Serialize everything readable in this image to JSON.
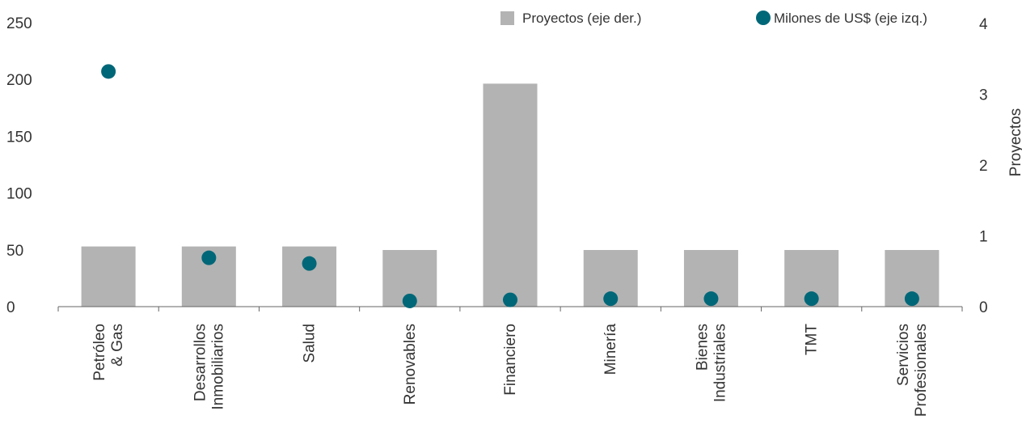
{
  "chart_data": {
    "type": "bar",
    "categories": [
      [
        "Petróleo",
        "& Gas"
      ],
      [
        "Desarrollos",
        "Inmobiliarios"
      ],
      [
        "Salud"
      ],
      [
        "Renovables"
      ],
      [
        "Financiero"
      ],
      [
        "Minería"
      ],
      [
        "Bienes",
        "Industriales"
      ],
      [
        "TMT"
      ],
      [
        "Servicios",
        "Profesionales"
      ]
    ],
    "series": [
      {
        "name": "Proyectos (eje der.)",
        "kind": "bar",
        "axis": "right",
        "color": "#b3b3b3",
        "values": [
          0.85,
          0.85,
          0.85,
          0.8,
          3.15,
          0.8,
          0.8,
          0.8,
          0.8
        ]
      },
      {
        "name": "Milones de US$ (eje izq.)",
        "kind": "dot",
        "axis": "left",
        "color": "#006778",
        "values": [
          207,
          43,
          38,
          5,
          6,
          7,
          7,
          7,
          7
        ]
      }
    ],
    "y_left": {
      "ylim": [
        0,
        250
      ],
      "ticks": [
        0,
        50,
        100,
        150,
        200,
        250
      ]
    },
    "y_right": {
      "ylim": [
        0,
        4
      ],
      "ticks": [
        0,
        1,
        2,
        3,
        4
      ],
      "label": "Proyectos"
    },
    "legend": {
      "placement": "top-right"
    },
    "grid": false
  }
}
